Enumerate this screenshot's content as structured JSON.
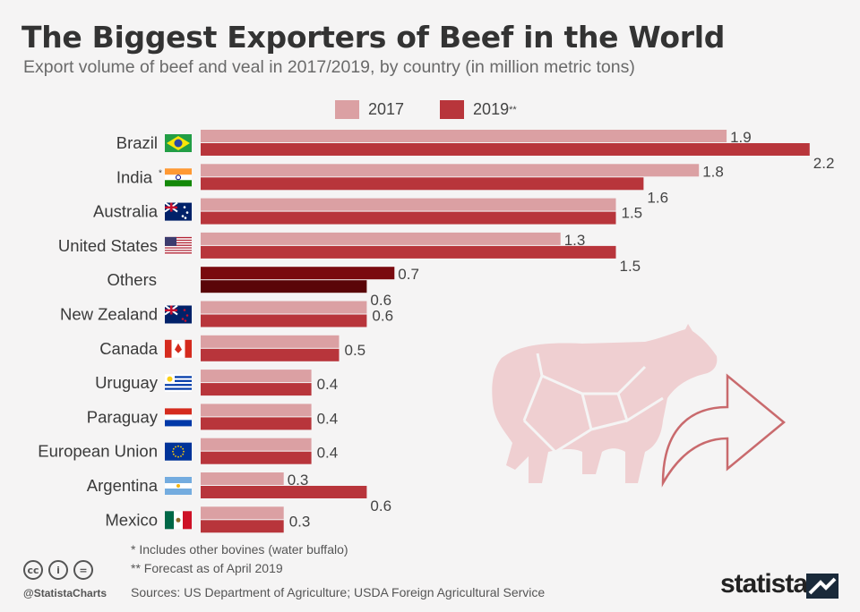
{
  "title": "The Biggest Exporters of Beef in the World",
  "subtitle": "Export volume of beef and veal in 2017/2019, by country (in million metric tons)",
  "legend": {
    "series_2017": "2017",
    "series_2019": "2019",
    "series_2019_mark": "**"
  },
  "colors": {
    "series_2017": "#dba0a3",
    "series_2019": "#b8353b",
    "others_2017": "#7a0a0f",
    "others_2019": "#5a0508",
    "illustration": "#efcfd1",
    "arrow": "#c96a6d"
  },
  "chart_data": {
    "type": "bar",
    "orientation": "horizontal",
    "title": "The Biggest Exporters of Beef in the World",
    "xlabel": "",
    "ylabel": "",
    "unit": "million metric tons",
    "categories": [
      "Brazil",
      "India",
      "Australia",
      "United States",
      "Others",
      "New Zealand",
      "Canada",
      "Uruguay",
      "Paraguay",
      "European Union",
      "Argentina",
      "Mexico"
    ],
    "category_marks": [
      "",
      "*",
      "",
      "",
      "",
      "",
      "",
      "",
      "",
      "",
      "",
      ""
    ],
    "series": [
      {
        "name": "2017",
        "values": [
          1.9,
          1.8,
          1.5,
          1.3,
          0.7,
          0.6,
          0.5,
          0.4,
          0.4,
          0.4,
          0.3,
          0.3
        ]
      },
      {
        "name": "2019**",
        "values": [
          2.2,
          1.6,
          1.5,
          1.5,
          0.6,
          0.6,
          0.5,
          0.4,
          0.4,
          0.4,
          0.6,
          0.3
        ]
      }
    ],
    "value_labels": [
      "1.9",
      "2.2",
      "1.8",
      "1.6",
      "1.5",
      "1.3",
      "1.5",
      "0.7",
      "0.6",
      "0.6",
      "0.5",
      "0.4",
      "0.4",
      "0.4",
      "0.3",
      "0.6",
      "0.3"
    ],
    "xlim": [
      0,
      2.2
    ],
    "grid": false,
    "legend_position": "top-center"
  },
  "footnotes": {
    "note1": "*   Includes other bovines (water buffalo)",
    "note2": "** Forecast as of April 2019",
    "sources": "Sources: US Department of Agriculture; USDA Foreign Agricultural Service"
  },
  "branding": {
    "handle": "@StatistaCharts",
    "logo": "statista",
    "license_icons": [
      "cc-icon",
      "by-icon",
      "nd-icon"
    ]
  }
}
